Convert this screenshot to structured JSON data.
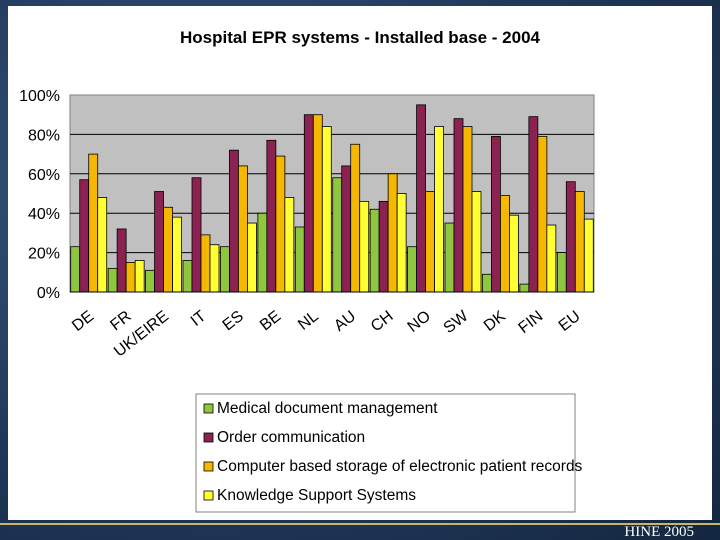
{
  "footer": "HINE 2005",
  "chart_data": {
    "type": "bar",
    "title": "Hospital EPR systems - Installed base - 2004",
    "xlabel": "",
    "ylabel": "",
    "ylim": [
      0,
      100
    ],
    "yticks": [
      "0%",
      "20%",
      "40%",
      "60%",
      "80%",
      "100%"
    ],
    "categories": [
      "DE",
      "FR",
      "UK/EIRE",
      "IT",
      "ES",
      "BE",
      "NL",
      "AU",
      "CH",
      "NO",
      "SW",
      "DK",
      "FIN",
      "EU"
    ],
    "series": [
      {
        "name": "Medical document management",
        "color": "#8fc63f",
        "values": [
          23,
          12,
          11,
          16,
          23,
          40,
          33,
          58,
          42,
          23,
          35,
          9,
          4,
          20
        ]
      },
      {
        "name": "Order communication",
        "color": "#8b2252",
        "values": [
          57,
          32,
          51,
          58,
          72,
          77,
          90,
          64,
          46,
          95,
          88,
          79,
          89,
          56
        ]
      },
      {
        "name": "Computer based storage of electronic patient records",
        "color": "#f5b800",
        "values": [
          70,
          15,
          43,
          29,
          64,
          69,
          90,
          75,
          60,
          51,
          84,
          49,
          79,
          51
        ]
      },
      {
        "name": "Knowledge Support Systems",
        "color": "#ffff33",
        "values": [
          48,
          16,
          38,
          24,
          35,
          48,
          84,
          46,
          50,
          84,
          51,
          39,
          34,
          37
        ]
      }
    ],
    "grid": true,
    "legend": "bottom",
    "plot_background": "#c0c0c0"
  }
}
